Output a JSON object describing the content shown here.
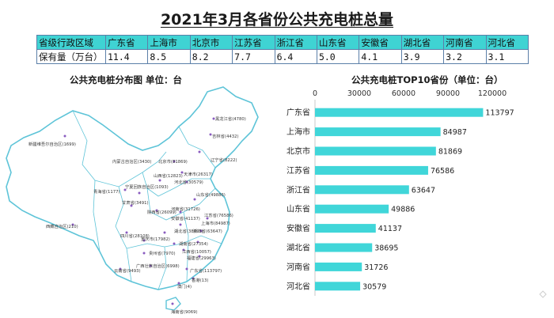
{
  "title": "2021年3月各省份公共充电桩总量",
  "table": {
    "row_header_1": "省级行政区域",
    "row_header_2": "保有量（万台）",
    "provinces": [
      "广东省",
      "上海市",
      "北京市",
      "江苏省",
      "浙江省",
      "山东省",
      "安徽省",
      "湖北省",
      "河南省",
      "河北省"
    ],
    "values": [
      "11.4",
      "8.5",
      "8.2",
      "7.7",
      "6.4",
      "5.0",
      "4.1",
      "3.9",
      "3.2",
      "3.1"
    ]
  },
  "map_title": "公共充电桩分布图  单位：台",
  "map_labels": [
    "新疆维吾尔自治区(1699)",
    "黑龙江省(4780)",
    "吉林省(4432)",
    "辽宁省(8222)",
    "内蒙古自治区(3430)",
    "北京市(81869)",
    "天津市(26317)",
    "河北省(30579)",
    "山西省(12823)",
    "宁夏回族自治区(1093)",
    "青海省(1177)",
    "甘肃省(3491)",
    "陕西省(26099)",
    "河南省(31726)",
    "山东省(49886)",
    "江苏省(76586)",
    "安徽省(41137)",
    "上海市(84987)",
    "西藏自治区(210)",
    "四川省(28108)",
    "重庆市(17982)",
    "湖北省(38695)",
    "浙江省(63647)",
    "湖南省(27354)",
    "贵州省(7970)",
    "江西省(10057)",
    "福建省(29963)",
    "云南省(9493)",
    "广西壮族自治区(6998)",
    "广东省(113797)",
    "香港(13)",
    "澳门(4)",
    "海南省(9069)"
  ],
  "bar_title": "公共充电桩TOP10省份（单位：台）",
  "colors": {
    "bar": "#40d6d9",
    "map_stroke": "#5ec4d8",
    "header_fill": "#3fd3d3",
    "table_border": "#5b7fa8"
  },
  "chart_data": {
    "type": "bar",
    "orientation": "horizontal",
    "title": "公共充电桩TOP10省份（单位：台）",
    "categories": [
      "广东省",
      "上海市",
      "北京市",
      "江苏省",
      "浙江省",
      "山东省",
      "安徽省",
      "湖北省",
      "河南省",
      "河北省"
    ],
    "values": [
      113797,
      84987,
      81869,
      76586,
      63647,
      49886,
      41137,
      38695,
      31726,
      30579
    ],
    "xlim": [
      0,
      120000
    ],
    "xticks": [
      0,
      30000,
      60000,
      90000,
      120000
    ],
    "axis_position": "top",
    "grid": false,
    "legend": "none"
  }
}
